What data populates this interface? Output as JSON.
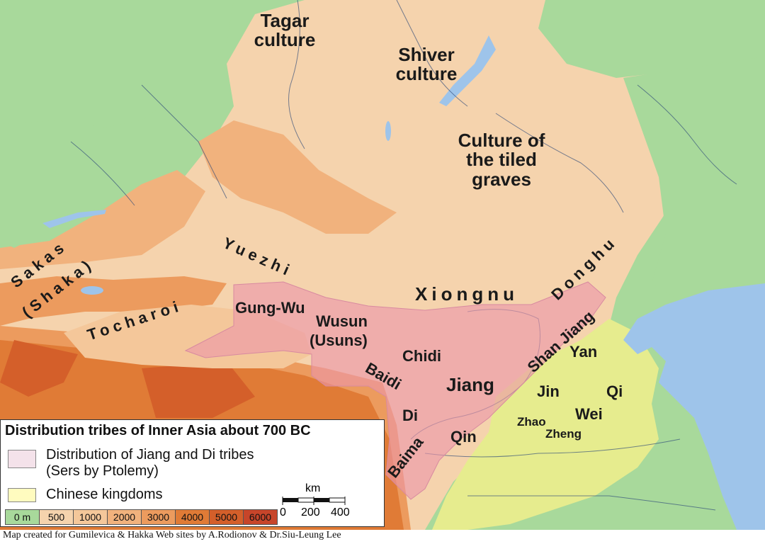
{
  "colors": {
    "lowland": "#a8d99b",
    "elev_500": "#f5d3ad",
    "elev_1000": "#f4c79a",
    "elev_2000": "#f1b27d",
    "elev_3000": "#ec9b5e",
    "elev_4000": "#e07b36",
    "elev_5000": "#d45f2a",
    "elev_6000": "#c7452a",
    "water": "#9ec4ea",
    "chinese": "#e6ec8e",
    "jiang_di": "rgba(236,150,170,0.62)"
  },
  "labels": {
    "tagar": "Tagar culture",
    "shiver": "Shiver culture",
    "tiled": "Culture of the tiled graves",
    "yuezhi": "Yuezhi",
    "sakas": "Sakas",
    "shaka": "(Shaka)",
    "tocharoi": "Tocharoi",
    "gungwu": "Gung-Wu",
    "wusun": "Wusun",
    "usuns": "(Usuns)",
    "xiongnu": "Xiongnu",
    "donghu": "Donghu",
    "shanjiang": "Shan Jiang",
    "chidi": "Chidi",
    "baidi": "Baidi",
    "jiang": "Jiang",
    "di": "Di",
    "baima": "Baima",
    "qin": "Qin",
    "yan": "Yan",
    "jin": "Jin",
    "qi": "Qi",
    "wei": "Wei",
    "zhao": "Zhao",
    "zheng": "Zheng"
  },
  "legend": {
    "title": "Distribution tribes of Inner Asia about 700 BC",
    "jiang_di_1": "Distribution of Jiang and Di tribes",
    "jiang_di_2": "(Sers by Ptolemy)",
    "chinese": "Chinese kingdoms",
    "elevation": [
      "0 m",
      "500",
      "1000",
      "2000",
      "3000",
      "4000",
      "5000",
      "6000"
    ],
    "scale_unit": "km",
    "scale_ticks": [
      "0",
      "200",
      "400"
    ]
  },
  "credit": "Map created for Gumilevica & Hakka Web sites by A.Rodionov & Dr.Siu-Leung Lee"
}
